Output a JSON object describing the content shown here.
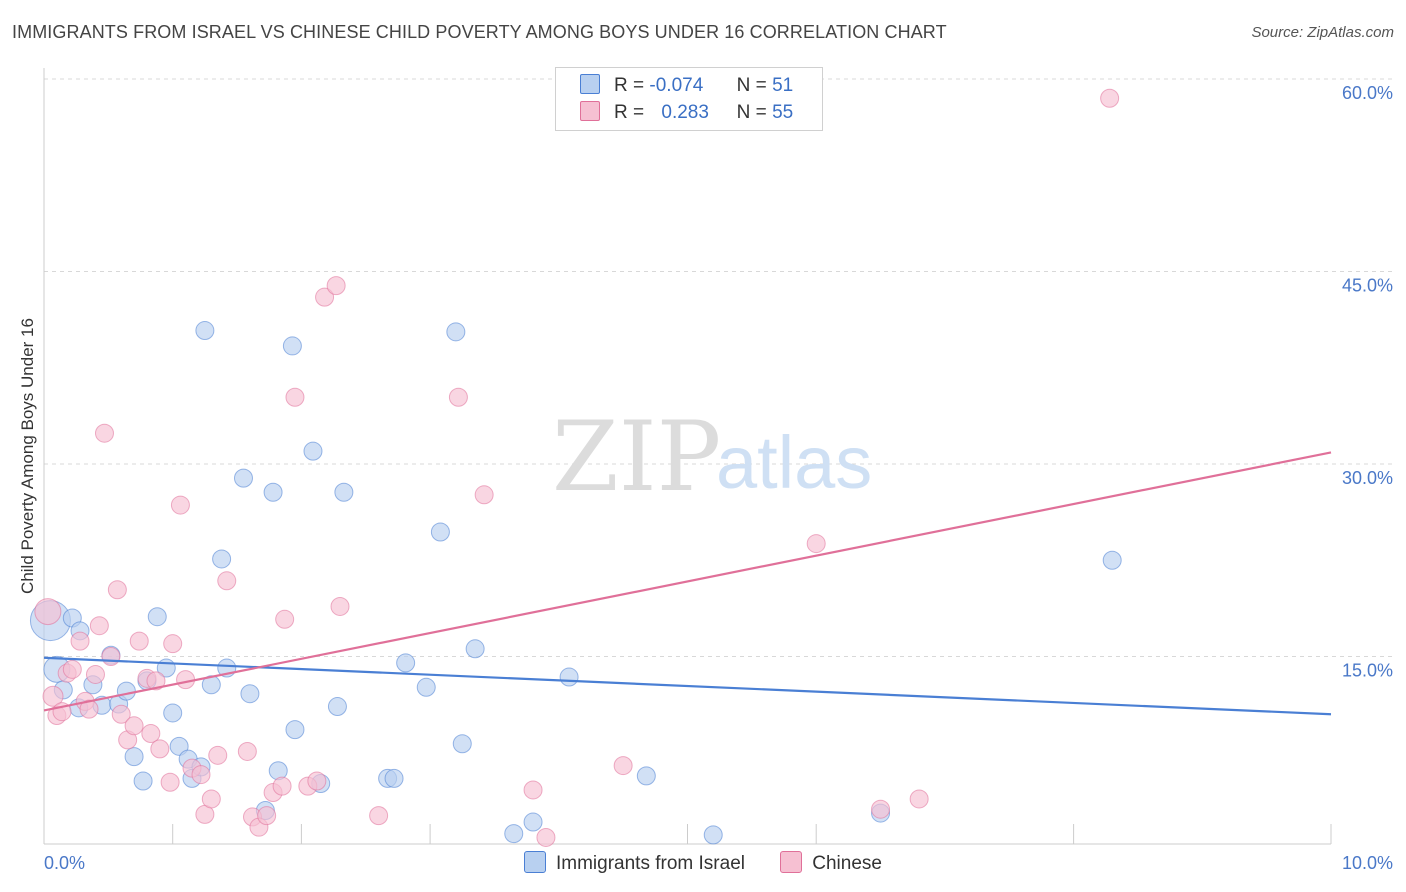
{
  "chart_data": {
    "type": "scatter",
    "title": "IMMIGRANTS FROM ISRAEL VS CHINESE CHILD POVERTY AMONG BOYS UNDER 16 CORRELATION CHART",
    "source": "Source: ZipAtlas.com",
    "xlabel": "",
    "ylabel": "Child Poverty Among Boys Under 16",
    "xlim": [
      0,
      10
    ],
    "ylim": [
      0,
      62
    ],
    "x_tick_labels": {
      "left": "0.0%",
      "right": "10.0%"
    },
    "y_ticks": [
      15,
      30,
      45,
      60
    ],
    "y_tick_labels": [
      "15.0%",
      "30.0%",
      "45.0%",
      "60.0%"
    ],
    "watermark": {
      "part1": "ZIP",
      "part2": "atlas"
    },
    "legend": {
      "stats": [
        {
          "r_label": "R =",
          "r_value": "-0.074",
          "n_label": "N =",
          "n_value": "51"
        },
        {
          "r_label": "R =",
          "r_value": "0.283",
          "n_label": "N =",
          "n_value": "55"
        }
      ]
    },
    "series": [
      {
        "name": "Immigrants from Israel",
        "color": "#4a7fd4",
        "fill": "#b8d0f0",
        "trend": {
          "x0": 0.0,
          "y0": 14.9,
          "x1": 10.0,
          "y1": 10.5
        },
        "points": [
          [
            0.05,
            17.8,
            20
          ],
          [
            0.1,
            14.0,
            13
          ],
          [
            0.15,
            12.4,
            9
          ],
          [
            0.22,
            18.0,
            9
          ],
          [
            0.28,
            17.0,
            9
          ],
          [
            0.27,
            11.0,
            9
          ],
          [
            0.38,
            12.8,
            9
          ],
          [
            0.45,
            11.2,
            9
          ],
          [
            0.52,
            15.1,
            9
          ],
          [
            0.58,
            11.3,
            9
          ],
          [
            0.64,
            12.3,
            9
          ],
          [
            0.7,
            7.2,
            9
          ],
          [
            0.77,
            5.3,
            9
          ],
          [
            0.8,
            13.1,
            9
          ],
          [
            0.88,
            18.1,
            9
          ],
          [
            0.95,
            14.1,
            9
          ],
          [
            1.0,
            10.6,
            9
          ],
          [
            1.05,
            8.0,
            9
          ],
          [
            1.12,
            7.0,
            9
          ],
          [
            1.15,
            5.5,
            9
          ],
          [
            1.22,
            6.4,
            9
          ],
          [
            1.25,
            40.4,
            9
          ],
          [
            1.3,
            12.8,
            9
          ],
          [
            1.38,
            22.6,
            9
          ],
          [
            1.42,
            14.1,
            9
          ],
          [
            1.55,
            28.9,
            9
          ],
          [
            1.6,
            12.1,
            9
          ],
          [
            1.72,
            3.0,
            9
          ],
          [
            1.78,
            27.8,
            9
          ],
          [
            1.82,
            6.1,
            9
          ],
          [
            1.93,
            39.2,
            9
          ],
          [
            1.95,
            9.3,
            9
          ],
          [
            2.09,
            31.0,
            9
          ],
          [
            2.15,
            5.1,
            9
          ],
          [
            2.28,
            11.1,
            9
          ],
          [
            2.33,
            27.8,
            9
          ],
          [
            2.67,
            5.5,
            9
          ],
          [
            2.72,
            5.5,
            9
          ],
          [
            2.81,
            14.5,
            9
          ],
          [
            2.97,
            12.6,
            9
          ],
          [
            3.08,
            24.7,
            9
          ],
          [
            3.2,
            40.3,
            9
          ],
          [
            3.25,
            8.2,
            9
          ],
          [
            3.35,
            15.6,
            9
          ],
          [
            3.65,
            1.2,
            9
          ],
          [
            3.8,
            2.1,
            9
          ],
          [
            4.08,
            13.4,
            9
          ],
          [
            4.68,
            5.7,
            9
          ],
          [
            5.2,
            1.1,
            9
          ],
          [
            6.5,
            2.8,
            9
          ],
          [
            8.3,
            22.5,
            9
          ]
        ]
      },
      {
        "name": "Chinese",
        "color": "#e07099",
        "fill": "#f6c0d2",
        "trend": {
          "x0": 0.0,
          "y0": 10.8,
          "x1": 10.0,
          "y1": 30.9
        },
        "points": [
          [
            0.03,
            18.5,
            13
          ],
          [
            0.07,
            11.9,
            10
          ],
          [
            0.1,
            10.4,
            9
          ],
          [
            0.14,
            10.7,
            9
          ],
          [
            0.18,
            13.7,
            9
          ],
          [
            0.22,
            14.0,
            9
          ],
          [
            0.28,
            16.2,
            9
          ],
          [
            0.32,
            11.5,
            9
          ],
          [
            0.35,
            10.9,
            9
          ],
          [
            0.4,
            13.6,
            9
          ],
          [
            0.43,
            17.4,
            9
          ],
          [
            0.47,
            32.4,
            9
          ],
          [
            0.52,
            15.0,
            9
          ],
          [
            0.57,
            20.2,
            9
          ],
          [
            0.6,
            10.5,
            9
          ],
          [
            0.65,
            8.5,
            9
          ],
          [
            0.7,
            9.6,
            9
          ],
          [
            0.74,
            16.2,
            9
          ],
          [
            0.8,
            13.3,
            9
          ],
          [
            0.83,
            9.0,
            9
          ],
          [
            0.87,
            13.1,
            9
          ],
          [
            0.9,
            7.8,
            9
          ],
          [
            0.98,
            5.2,
            9
          ],
          [
            1.0,
            16.0,
            9
          ],
          [
            1.06,
            26.8,
            9
          ],
          [
            1.1,
            13.2,
            9
          ],
          [
            1.15,
            6.3,
            9
          ],
          [
            1.22,
            5.8,
            9
          ],
          [
            1.25,
            2.7,
            9
          ],
          [
            1.3,
            3.9,
            9
          ],
          [
            1.35,
            7.3,
            9
          ],
          [
            1.42,
            20.9,
            9
          ],
          [
            1.58,
            7.6,
            9
          ],
          [
            1.62,
            2.5,
            9
          ],
          [
            1.67,
            1.7,
            9
          ],
          [
            1.73,
            2.6,
            9
          ],
          [
            1.78,
            4.4,
            9
          ],
          [
            1.85,
            4.9,
            9
          ],
          [
            1.87,
            17.9,
            9
          ],
          [
            1.95,
            35.2,
            9
          ],
          [
            2.05,
            4.9,
            9
          ],
          [
            2.12,
            5.3,
            9
          ],
          [
            2.18,
            43.0,
            9
          ],
          [
            2.27,
            43.9,
            9
          ],
          [
            2.3,
            18.9,
            9
          ],
          [
            2.6,
            2.6,
            9
          ],
          [
            3.22,
            35.2,
            9
          ],
          [
            3.42,
            27.6,
            9
          ],
          [
            3.8,
            4.6,
            9
          ],
          [
            3.9,
            0.9,
            9
          ],
          [
            4.5,
            6.5,
            9
          ],
          [
            6.0,
            23.8,
            9
          ],
          [
            6.5,
            3.1,
            9
          ],
          [
            6.8,
            3.9,
            9
          ],
          [
            8.28,
            58.5,
            9
          ]
        ]
      }
    ]
  }
}
